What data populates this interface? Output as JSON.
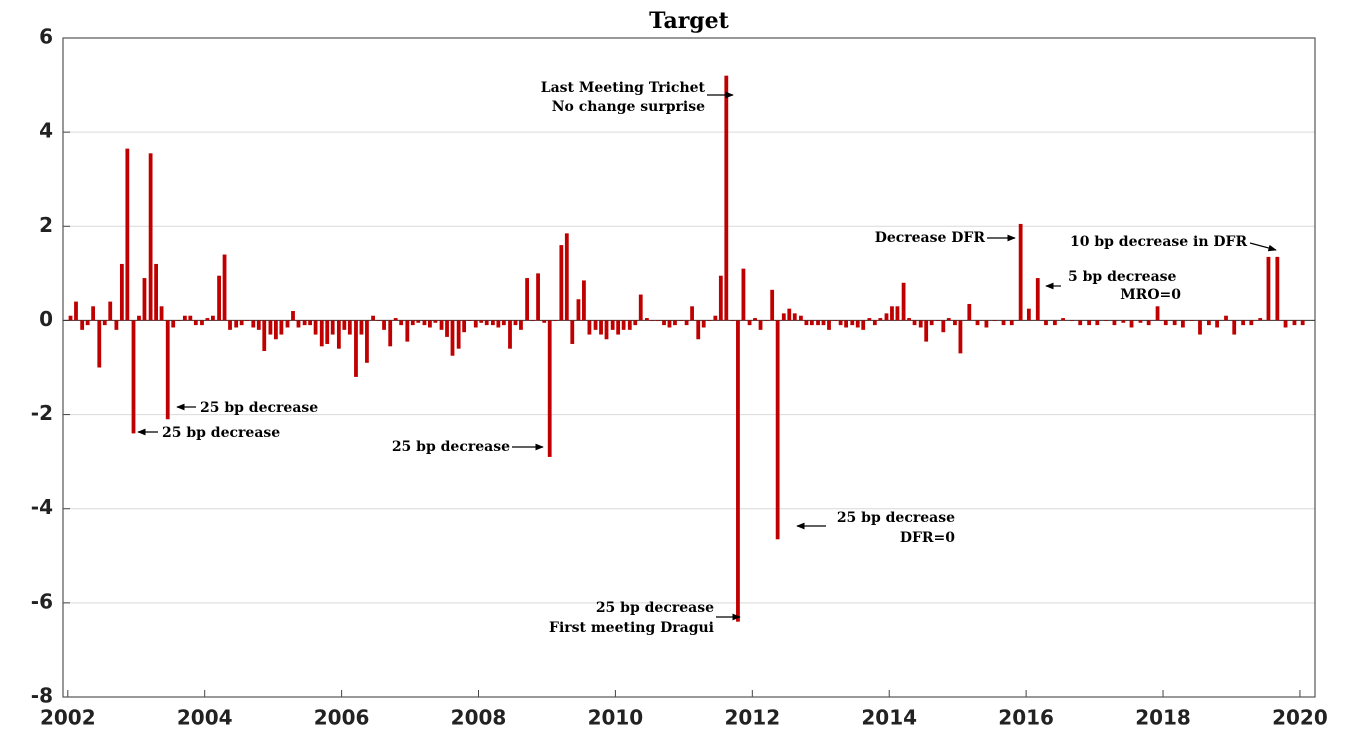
{
  "chart_data": {
    "type": "bar",
    "title": "Target",
    "color": "#c00000",
    "grid": true,
    "xlim": [
      2001.93,
      2020.22
    ],
    "xticks": [
      2002,
      2004,
      2006,
      2008,
      2010,
      2012,
      2014,
      2016,
      2018,
      2020
    ],
    "ylim": [
      -8,
      6
    ],
    "yticks": [
      -8,
      -6,
      -4,
      -2,
      0,
      2,
      4,
      6
    ],
    "x": [
      2002.04,
      2002.12,
      2002.21,
      2002.29,
      2002.37,
      2002.46,
      2002.54,
      2002.62,
      2002.71,
      2002.79,
      2002.87,
      2002.96,
      2003.04,
      2003.12,
      2003.21,
      2003.29,
      2003.37,
      2003.46,
      2003.54,
      2003.62,
      2003.71,
      2003.79,
      2003.87,
      2003.96,
      2004.04,
      2004.12,
      2004.21,
      2004.29,
      2004.37,
      2004.46,
      2004.54,
      2004.62,
      2004.71,
      2004.79,
      2004.87,
      2004.96,
      2005.04,
      2005.12,
      2005.21,
      2005.29,
      2005.37,
      2005.46,
      2005.54,
      2005.62,
      2005.71,
      2005.79,
      2005.87,
      2005.96,
      2006.04,
      2006.12,
      2006.21,
      2006.29,
      2006.37,
      2006.46,
      2006.54,
      2006.62,
      2006.71,
      2006.79,
      2006.87,
      2006.96,
      2007.04,
      2007.12,
      2007.21,
      2007.29,
      2007.37,
      2007.46,
      2007.54,
      2007.62,
      2007.71,
      2007.79,
      2007.87,
      2007.96,
      2008.04,
      2008.12,
      2008.21,
      2008.29,
      2008.37,
      2008.46,
      2008.54,
      2008.62,
      2008.71,
      2008.79,
      2008.87,
      2008.96,
      2009.04,
      2009.12,
      2009.21,
      2009.29,
      2009.37,
      2009.46,
      2009.54,
      2009.62,
      2009.71,
      2009.79,
      2009.87,
      2009.96,
      2010.04,
      2010.12,
      2010.21,
      2010.29,
      2010.37,
      2010.46,
      2010.54,
      2010.62,
      2010.71,
      2010.79,
      2010.87,
      2010.96,
      2011.04,
      2011.12,
      2011.21,
      2011.29,
      2011.37,
      2011.46,
      2011.54,
      2011.62,
      2011.71,
      2011.79,
      2011.87,
      2011.96,
      2012.04,
      2012.12,
      2012.21,
      2012.29,
      2012.37,
      2012.46,
      2012.54,
      2012.62,
      2012.71,
      2012.79,
      2012.87,
      2012.96,
      2013.04,
      2013.12,
      2013.21,
      2013.29,
      2013.37,
      2013.46,
      2013.54,
      2013.62,
      2013.71,
      2013.79,
      2013.87,
      2013.96,
      2014.04,
      2014.12,
      2014.21,
      2014.29,
      2014.37,
      2014.46,
      2014.54,
      2014.62,
      2014.71,
      2014.79,
      2014.87,
      2014.96,
      2015.04,
      2015.17,
      2015.29,
      2015.42,
      2015.54,
      2015.67,
      2015.79,
      2015.92,
      2016.04,
      2016.17,
      2016.29,
      2016.42,
      2016.54,
      2016.67,
      2016.79,
      2016.92,
      2017.04,
      2017.17,
      2017.29,
      2017.42,
      2017.54,
      2017.67,
      2017.79,
      2017.92,
      2018.04,
      2018.17,
      2018.29,
      2018.42,
      2018.54,
      2018.67,
      2018.79,
      2018.92,
      2019.04,
      2019.17,
      2019.29,
      2019.42,
      2019.54,
      2019.67,
      2019.79,
      2019.92,
      2020.04
    ],
    "values": [
      0.1,
      0.4,
      -0.2,
      -0.1,
      0.3,
      -1.0,
      -0.1,
      0.4,
      -0.2,
      1.2,
      3.65,
      -2.4,
      0.1,
      0.9,
      3.55,
      1.2,
      0.3,
      -2.1,
      -0.15,
      0.0,
      0.1,
      0.1,
      -0.1,
      -0.1,
      0.05,
      0.1,
      0.95,
      1.4,
      -0.2,
      -0.15,
      -0.1,
      0.0,
      -0.15,
      -0.2,
      -0.65,
      -0.3,
      -0.4,
      -0.3,
      -0.15,
      0.2,
      -0.15,
      -0.1,
      -0.1,
      -0.3,
      -0.55,
      -0.5,
      -0.3,
      -0.6,
      -0.2,
      -0.3,
      -1.2,
      -0.3,
      -0.9,
      0.1,
      0.0,
      -0.2,
      -0.55,
      0.05,
      -0.1,
      -0.45,
      -0.1,
      -0.05,
      -0.1,
      -0.15,
      -0.05,
      -0.2,
      -0.35,
      -0.75,
      -0.6,
      -0.25,
      0.0,
      -0.15,
      -0.05,
      -0.1,
      -0.1,
      -0.15,
      -0.1,
      -0.6,
      -0.1,
      -0.2,
      0.9,
      0.0,
      1.0,
      -0.05,
      -2.9,
      0.0,
      1.6,
      1.85,
      -0.5,
      0.45,
      0.85,
      -0.3,
      -0.2,
      -0.3,
      -0.4,
      -0.2,
      -0.3,
      -0.2,
      -0.2,
      -0.1,
      0.55,
      0.05,
      0.0,
      0.0,
      -0.1,
      -0.15,
      -0.1,
      0.0,
      -0.1,
      0.3,
      -0.4,
      -0.15,
      0.0,
      0.1,
      0.95,
      5.2,
      0.0,
      -6.4,
      1.1,
      -0.1,
      0.05,
      -0.2,
      0.0,
      0.65,
      -4.65,
      0.15,
      0.25,
      0.15,
      0.1,
      -0.1,
      -0.1,
      -0.1,
      -0.1,
      -0.2,
      0.0,
      -0.1,
      -0.15,
      -0.1,
      -0.15,
      -0.2,
      0.05,
      -0.1,
      0.05,
      0.15,
      0.3,
      0.3,
      0.8,
      0.05,
      -0.1,
      -0.15,
      -0.45,
      -0.1,
      0.0,
      -0.25,
      0.05,
      -0.1,
      -0.7,
      0.35,
      -0.1,
      -0.15,
      0.0,
      -0.1,
      -0.1,
      2.05,
      0.25,
      0.9,
      -0.1,
      -0.1,
      0.05,
      0.0,
      -0.1,
      -0.1,
      -0.1,
      0.0,
      -0.1,
      -0.05,
      -0.15,
      -0.05,
      -0.1,
      0.3,
      -0.1,
      -0.1,
      -0.15,
      0.0,
      -0.3,
      -0.1,
      -0.15,
      0.1,
      -0.3,
      -0.1,
      -0.1,
      0.05,
      1.35,
      1.35,
      -0.15,
      -0.1,
      -0.1
    ],
    "annotations": [
      {
        "lines": [
          "Last Meeting Trichet",
          "No change surprise"
        ]
      },
      {
        "lines": [
          "25 bp decrease",
          "First meeting Dragui"
        ]
      },
      {
        "lines": [
          "25 bp decrease",
          "DFR=0"
        ]
      },
      {
        "lines": [
          "25 bp decrease"
        ]
      },
      {
        "lines": [
          "25 bp decrease"
        ]
      },
      {
        "lines": [
          "25 bp decrease"
        ]
      },
      {
        "lines": [
          "Decrease DFR"
        ]
      },
      {
        "lines": [
          "5 bp decrease",
          "MRO=0"
        ]
      },
      {
        "lines": [
          "10 bp decrease in DFR"
        ]
      }
    ]
  }
}
